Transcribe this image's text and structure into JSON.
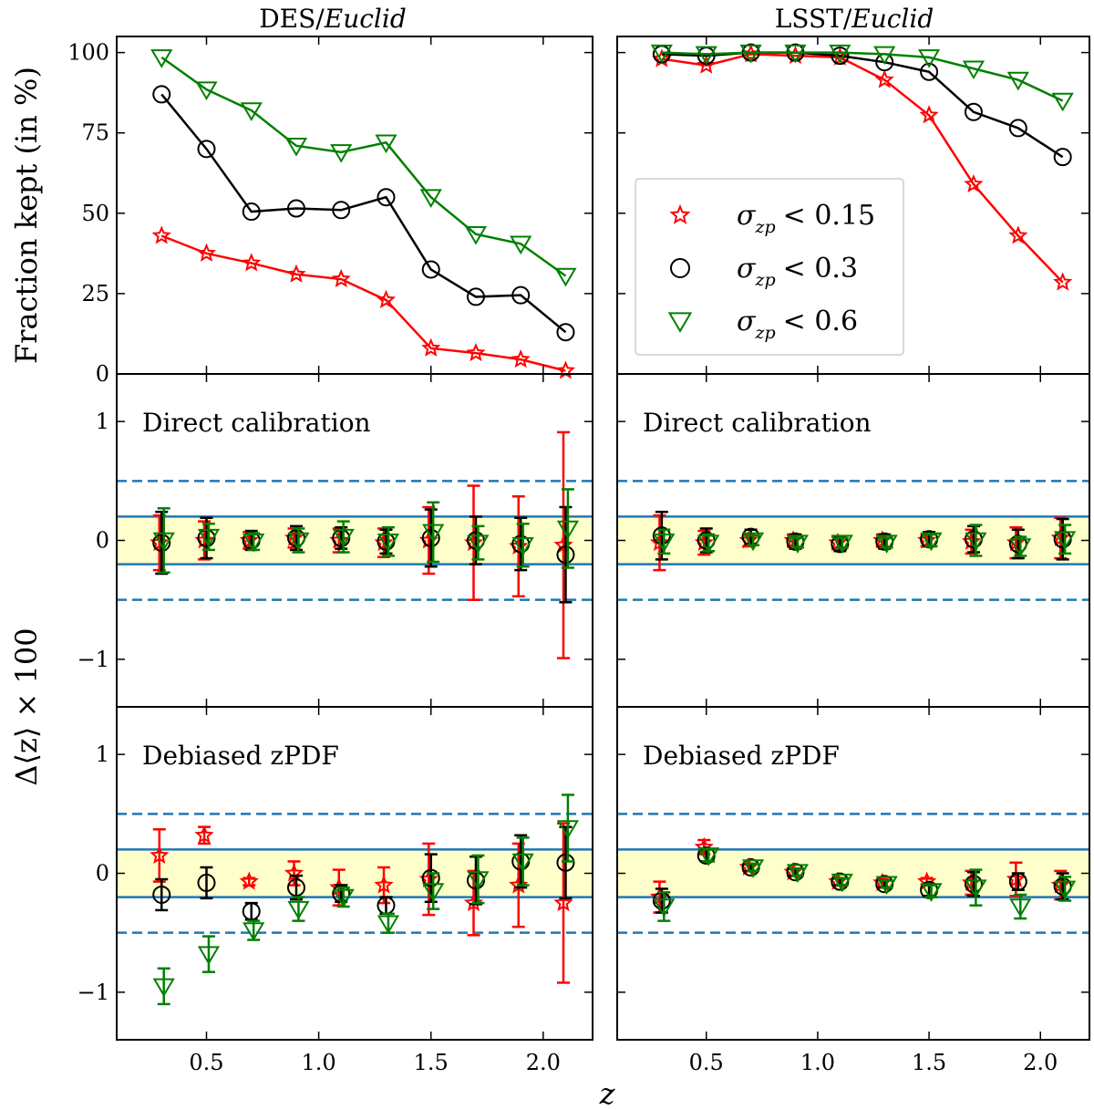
{
  "chart_data": {
    "type": "scatter",
    "xlabel": "z",
    "ylabel_top": "Fraction kept (in %)",
    "ylabel_bottom": "Δ⟨z⟩ × 100",
    "columns": [
      {
        "title_prefix": "DES/",
        "title_italic": "Euclid"
      },
      {
        "title_prefix": "LSST/",
        "title_italic": "Euclid"
      }
    ],
    "xlim": [
      0.1,
      2.22
    ],
    "xticks": [
      0.5,
      1.0,
      1.5,
      2.0
    ],
    "xtick_labels": [
      "0.5",
      "1.0",
      "1.5",
      "2.0"
    ],
    "fraction_ylim": [
      0,
      105
    ],
    "fraction_yticks": [
      0,
      25,
      50,
      75,
      100
    ],
    "fraction_ytick_labels": [
      "0",
      "25",
      "50",
      "75",
      "100"
    ],
    "delta_ylim": [
      -1.4,
      1.4
    ],
    "delta_yticks": [
      -1,
      0,
      1
    ],
    "delta_ytick_labels": [
      "−1",
      "0",
      "1"
    ],
    "band_inner": 0.2,
    "band_outer": 0.5,
    "panel_labels": [
      "Direct calibration",
      "Debiased zPDF"
    ],
    "z": [
      0.3,
      0.5,
      0.7,
      0.9,
      1.1,
      1.3,
      1.5,
      1.7,
      1.9,
      2.1
    ],
    "series": [
      {
        "name": "σzp < 0.15",
        "legend_sub": "zp",
        "legend_text": "< 0.15",
        "marker": "star",
        "color": "#ff0000",
        "offset": -0.01
      },
      {
        "name": "σzp < 0.3",
        "legend_sub": "zp",
        "legend_text": "< 0.3",
        "marker": "circle",
        "color": "#000000",
        "offset": 0.0
      },
      {
        "name": "σzp < 0.6",
        "legend_sub": "zp",
        "legend_text": "< 0.6",
        "marker": "triangle",
        "color": "#008000",
        "offset": 0.01
      }
    ],
    "fraction": {
      "DES": [
        [
          43,
          37.5,
          34.5,
          31,
          29.5,
          23,
          8,
          6.5,
          4.5,
          1
        ],
        [
          87,
          70,
          50.5,
          51.5,
          51,
          55,
          32.5,
          24,
          24.5,
          13
        ],
        [
          98.5,
          88.5,
          82,
          71,
          69,
          72,
          55,
          43.5,
          40.5,
          30.5
        ]
      ],
      "LSST": [
        [
          98,
          96,
          99.5,
          99,
          98.5,
          91.5,
          80.5,
          59,
          43,
          28.5
        ],
        [
          99.5,
          99,
          100,
          100,
          99,
          97,
          94,
          81.5,
          76.5,
          67.5
        ],
        [
          100,
          99.5,
          100,
          100,
          100,
          99.5,
          98.5,
          95,
          91.5,
          85
        ]
      ]
    },
    "direct": {
      "DES": [
        {
          "values": [
            -0.02,
            0.0,
            0.0,
            0.02,
            0.0,
            -0.02,
            0.0,
            -0.02,
            -0.05,
            -0.04
          ],
          "errors": [
            0.23,
            0.16,
            0.07,
            0.08,
            0.1,
            0.12,
            0.28,
            0.48,
            0.42,
            0.95
          ]
        },
        {
          "values": [
            -0.02,
            0.02,
            0.0,
            0.02,
            0.02,
            -0.01,
            0.02,
            0.0,
            -0.03,
            -0.12
          ],
          "errors": [
            0.26,
            0.17,
            0.08,
            0.1,
            0.09,
            0.1,
            0.24,
            0.2,
            0.22,
            0.4
          ]
        },
        {
          "values": [
            0.0,
            0.03,
            -0.01,
            0.0,
            0.03,
            -0.01,
            0.07,
            -0.02,
            -0.04,
            0.1
          ],
          "errors": [
            0.27,
            0.11,
            0.07,
            0.1,
            0.13,
            0.12,
            0.25,
            0.14,
            0.18,
            0.33
          ]
        }
      ],
      "LSST": [
        {
          "values": [
            -0.02,
            -0.02,
            0.0,
            0.0,
            -0.02,
            0.0,
            0.0,
            -0.01,
            -0.02,
            0.02
          ],
          "errors": [
            0.23,
            0.1,
            0.05,
            0.05,
            0.05,
            0.05,
            0.05,
            0.1,
            0.13,
            0.17
          ]
        },
        {
          "values": [
            0.04,
            0.0,
            0.03,
            -0.01,
            -0.03,
            -0.01,
            0.01,
            0.01,
            -0.03,
            0.01
          ],
          "errors": [
            0.2,
            0.1,
            0.06,
            0.06,
            0.06,
            0.06,
            0.06,
            0.11,
            0.12,
            0.17
          ]
        },
        {
          "values": [
            -0.01,
            -0.02,
            0.0,
            -0.02,
            -0.02,
            -0.02,
            0.0,
            0.0,
            -0.05,
            0.01
          ],
          "errors": [
            0.1,
            0.07,
            0.04,
            0.04,
            0.04,
            0.04,
            0.05,
            0.13,
            0.08,
            0.12
          ]
        }
      ]
    },
    "zpdf": {
      "DES": [
        {
          "values": [
            0.15,
            0.32,
            -0.07,
            0.0,
            -0.12,
            -0.1,
            -0.05,
            -0.25,
            -0.1,
            -0.25
          ],
          "errors": [
            0.22,
            0.07,
            0.03,
            0.1,
            0.15,
            0.15,
            0.3,
            0.27,
            0.35,
            0.67
          ]
        },
        {
          "values": [
            -0.18,
            -0.08,
            -0.32,
            -0.12,
            -0.17,
            -0.27,
            -0.04,
            -0.06,
            0.1,
            0.09
          ],
          "errors": [
            0.13,
            0.13,
            0.07,
            0.1,
            0.07,
            0.07,
            0.2,
            0.2,
            0.22,
            0.3
          ]
        },
        {
          "values": [
            -0.95,
            -0.68,
            -0.48,
            -0.3,
            -0.2,
            -0.42,
            -0.15,
            -0.05,
            0.1,
            0.38
          ],
          "errors": [
            0.15,
            0.15,
            0.08,
            0.1,
            0.08,
            0.08,
            0.15,
            0.2,
            0.2,
            0.28
          ]
        }
      ],
      "LSST": [
        {
          "values": [
            -0.2,
            0.22,
            0.05,
            0.01,
            -0.07,
            -0.08,
            -0.07,
            -0.08,
            -0.05,
            -0.1
          ],
          "errors": [
            0.13,
            0.06,
            0.03,
            0.03,
            0.03,
            0.03,
            0.03,
            0.1,
            0.14,
            0.12
          ]
        },
        {
          "values": [
            -0.23,
            0.15,
            0.05,
            0.01,
            -0.07,
            -0.09,
            -0.14,
            -0.09,
            -0.07,
            -0.11
          ],
          "errors": [
            0.1,
            0.05,
            0.03,
            0.03,
            0.03,
            0.03,
            0.05,
            0.1,
            0.07,
            0.11
          ]
        },
        {
          "values": [
            -0.28,
            0.15,
            0.05,
            0.01,
            -0.07,
            -0.09,
            -0.15,
            -0.12,
            -0.28,
            -0.13
          ],
          "errors": [
            0.12,
            0.05,
            0.03,
            0.03,
            0.03,
            0.03,
            0.05,
            0.15,
            0.1,
            0.1
          ]
        }
      ]
    },
    "legend": {
      "symbol": "σ",
      "location": "upper-left of LSST fraction panel"
    }
  }
}
